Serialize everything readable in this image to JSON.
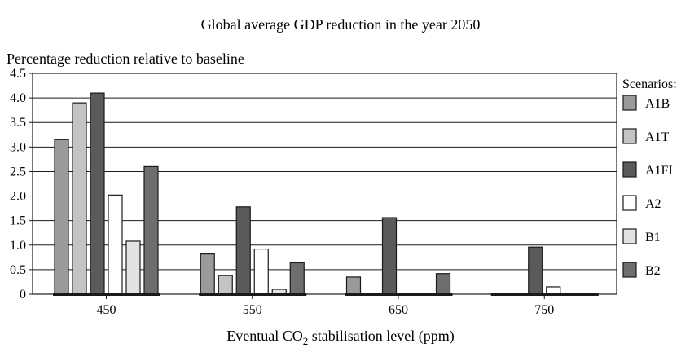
{
  "chart_data": {
    "type": "bar",
    "title": "Global average GDP reduction in the year 2050",
    "ylabel": "Percentage reduction relative to baseline",
    "xlabel": {
      "prefix": "Eventual CO",
      "subscript": "2",
      "suffix": " stabilisation level (ppm)"
    },
    "categories": [
      "450",
      "550",
      "650",
      "750"
    ],
    "ylim": [
      0,
      4.5
    ],
    "yticks": [
      "0",
      "0.5",
      "1.0",
      "1.5",
      "2.0",
      "2.5",
      "3.0",
      "3.5",
      "4.0",
      "4.5"
    ],
    "grid": true,
    "legend_title": "Scenarios:",
    "legend_position": "right",
    "series": [
      {
        "name": "A1B",
        "color": "#9a9a9a",
        "values": [
          3.15,
          0.82,
          0.35,
          0
        ]
      },
      {
        "name": "A1T",
        "color": "#c4c4c4",
        "values": [
          3.9,
          0.38,
          0,
          0
        ]
      },
      {
        "name": "A1FI",
        "color": "#5a5a5a",
        "values": [
          4.1,
          1.78,
          1.56,
          0.96
        ]
      },
      {
        "name": "A2",
        "color": "#ffffff",
        "values": [
          2.02,
          0.92,
          0,
          0.15
        ]
      },
      {
        "name": "B1",
        "color": "#e2e2e2",
        "values": [
          1.08,
          0.1,
          0,
          0
        ]
      },
      {
        "name": "B2",
        "color": "#6e6e6e",
        "values": [
          2.6,
          0.64,
          0.42,
          0
        ]
      }
    ]
  }
}
